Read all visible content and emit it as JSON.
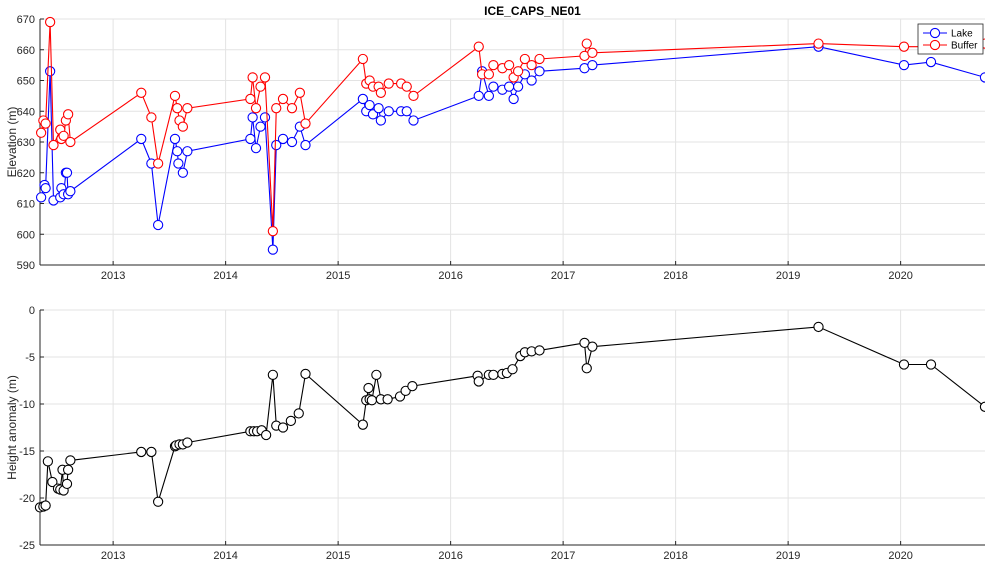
{
  "chart_data": [
    {
      "type": "line",
      "title": "ICE_CAPS_NE01",
      "xlabel": "",
      "ylabel": "Elevation (m)",
      "xlim": [
        2012.35,
        2020.75
      ],
      "ylim": [
        590,
        670
      ],
      "x_ticks": [
        "2013",
        "2014",
        "2015",
        "2016",
        "2017",
        "2018",
        "2019",
        "2020"
      ],
      "y_ticks": [
        "590",
        "600",
        "610",
        "620",
        "630",
        "640",
        "650",
        "660",
        "670"
      ],
      "grid": true,
      "legend_position": "top-right",
      "series": [
        {
          "name": "Lake",
          "color": "#0000ff",
          "points": [
            [
              2012.36,
              612
            ],
            [
              2012.39,
              616
            ],
            [
              2012.4,
              615
            ],
            [
              2012.44,
              653
            ],
            [
              2012.47,
              611
            ],
            [
              2012.53,
              612
            ],
            [
              2012.54,
              615
            ],
            [
              2012.56,
              613
            ],
            [
              2012.58,
              620
            ],
            [
              2012.59,
              620
            ],
            [
              2012.6,
              613
            ],
            [
              2012.62,
              614
            ],
            [
              2013.25,
              631
            ],
            [
              2013.34,
              623
            ],
            [
              2013.4,
              603
            ],
            [
              2013.55,
              631
            ],
            [
              2013.57,
              627
            ],
            [
              2013.58,
              623
            ],
            [
              2013.62,
              620
            ],
            [
              2013.66,
              627
            ],
            [
              2014.22,
              631
            ],
            [
              2014.24,
              638
            ],
            [
              2014.27,
              628
            ],
            [
              2014.31,
              635
            ],
            [
              2014.35,
              638
            ],
            [
              2014.42,
              595
            ],
            [
              2014.45,
              629
            ],
            [
              2014.51,
              631
            ],
            [
              2014.59,
              630
            ],
            [
              2014.66,
              635
            ],
            [
              2014.71,
              629
            ],
            [
              2015.22,
              644
            ],
            [
              2015.25,
              640
            ],
            [
              2015.28,
              642
            ],
            [
              2015.31,
              639
            ],
            [
              2015.36,
              641
            ],
            [
              2015.38,
              637
            ],
            [
              2015.45,
              640
            ],
            [
              2015.56,
              640
            ],
            [
              2015.61,
              640
            ],
            [
              2015.67,
              637
            ],
            [
              2016.25,
              645
            ],
            [
              2016.28,
              653
            ],
            [
              2016.34,
              645
            ],
            [
              2016.38,
              648
            ],
            [
              2016.46,
              647
            ],
            [
              2016.52,
              648
            ],
            [
              2016.56,
              644
            ],
            [
              2016.6,
              648
            ],
            [
              2016.66,
              652
            ],
            [
              2016.72,
              650
            ],
            [
              2016.79,
              653
            ],
            [
              2017.19,
              654
            ],
            [
              2017.26,
              655
            ],
            [
              2019.27,
              661
            ],
            [
              2020.03,
              655
            ],
            [
              2020.27,
              656
            ],
            [
              2020.75,
              651
            ]
          ]
        },
        {
          "name": "Buffer",
          "color": "#ff0000",
          "points": [
            [
              2012.36,
              633
            ],
            [
              2012.38,
              637
            ],
            [
              2012.4,
              636
            ],
            [
              2012.44,
              669
            ],
            [
              2012.47,
              629
            ],
            [
              2012.53,
              634
            ],
            [
              2012.54,
              631
            ],
            [
              2012.56,
              632
            ],
            [
              2012.58,
              637
            ],
            [
              2012.6,
              639
            ],
            [
              2012.62,
              630
            ],
            [
              2013.25,
              646
            ],
            [
              2013.34,
              638
            ],
            [
              2013.4,
              623
            ],
            [
              2013.55,
              645
            ],
            [
              2013.57,
              641
            ],
            [
              2013.59,
              637
            ],
            [
              2013.62,
              635
            ],
            [
              2013.66,
              641
            ],
            [
              2014.22,
              644
            ],
            [
              2014.24,
              651
            ],
            [
              2014.27,
              641
            ],
            [
              2014.31,
              648
            ],
            [
              2014.35,
              651
            ],
            [
              2014.42,
              601
            ],
            [
              2014.45,
              641
            ],
            [
              2014.51,
              644
            ],
            [
              2014.59,
              641
            ],
            [
              2014.66,
              646
            ],
            [
              2014.71,
              636
            ],
            [
              2015.22,
              657
            ],
            [
              2015.25,
              649
            ],
            [
              2015.28,
              650
            ],
            [
              2015.31,
              648
            ],
            [
              2015.36,
              648
            ],
            [
              2015.38,
              646
            ],
            [
              2015.45,
              649
            ],
            [
              2015.56,
              649
            ],
            [
              2015.61,
              648
            ],
            [
              2015.67,
              645
            ],
            [
              2016.25,
              661
            ],
            [
              2016.28,
              652
            ],
            [
              2016.34,
              652
            ],
            [
              2016.38,
              655
            ],
            [
              2016.46,
              654
            ],
            [
              2016.52,
              655
            ],
            [
              2016.56,
              651
            ],
            [
              2016.6,
              653
            ],
            [
              2016.66,
              657
            ],
            [
              2016.72,
              655
            ],
            [
              2016.79,
              657
            ],
            [
              2017.19,
              658
            ],
            [
              2017.21,
              662
            ],
            [
              2017.26,
              659
            ],
            [
              2019.27,
              662
            ],
            [
              2020.03,
              661
            ],
            [
              2020.27,
              661
            ],
            [
              2020.75,
              662
            ]
          ]
        }
      ]
    },
    {
      "type": "line",
      "title": "",
      "xlabel": "",
      "ylabel": "Height anomaly (m)",
      "xlim": [
        2012.35,
        2020.75
      ],
      "ylim": [
        -25,
        0
      ],
      "x_ticks": [
        "2013",
        "2014",
        "2015",
        "2016",
        "2017",
        "2018",
        "2019",
        "2020"
      ],
      "y_ticks": [
        "-25",
        "-20",
        "-15",
        "-10",
        "-5",
        "0"
      ],
      "grid": true,
      "series": [
        {
          "name": "",
          "color": "#000000",
          "points": [
            [
              2012.35,
              -21.0
            ],
            [
              2012.38,
              -20.9
            ],
            [
              2012.4,
              -20.8
            ],
            [
              2012.42,
              -16.1
            ],
            [
              2012.46,
              -18.3
            ],
            [
              2012.51,
              -19.0
            ],
            [
              2012.53,
              -19.1
            ],
            [
              2012.55,
              -17.0
            ],
            [
              2012.56,
              -19.2
            ],
            [
              2012.59,
              -18.5
            ],
            [
              2012.6,
              -17.0
            ],
            [
              2012.62,
              -16.0
            ],
            [
              2013.25,
              -15.1
            ],
            [
              2013.34,
              -15.1
            ],
            [
              2013.4,
              -20.4
            ],
            [
              2013.55,
              -14.5
            ],
            [
              2013.56,
              -14.4
            ],
            [
              2013.59,
              -14.3
            ],
            [
              2013.62,
              -14.3
            ],
            [
              2013.66,
              -14.1
            ],
            [
              2014.22,
              -12.9
            ],
            [
              2014.25,
              -12.9
            ],
            [
              2014.28,
              -12.9
            ],
            [
              2014.32,
              -12.8
            ],
            [
              2014.36,
              -13.3
            ],
            [
              2014.42,
              -6.9
            ],
            [
              2014.45,
              -12.3
            ],
            [
              2014.51,
              -12.5
            ],
            [
              2014.58,
              -11.8
            ],
            [
              2014.65,
              -11.0
            ],
            [
              2014.71,
              -6.8
            ],
            [
              2015.22,
              -12.2
            ],
            [
              2015.25,
              -9.6
            ],
            [
              2015.27,
              -8.3
            ],
            [
              2015.28,
              -9.5
            ],
            [
              2015.3,
              -9.6
            ],
            [
              2015.34,
              -6.9
            ],
            [
              2015.38,
              -9.5
            ],
            [
              2015.44,
              -9.5
            ],
            [
              2015.55,
              -9.2
            ],
            [
              2015.6,
              -8.6
            ],
            [
              2015.66,
              -8.1
            ],
            [
              2016.24,
              -7.0
            ],
            [
              2016.25,
              -7.6
            ],
            [
              2016.34,
              -6.9
            ],
            [
              2016.38,
              -6.9
            ],
            [
              2016.46,
              -6.8
            ],
            [
              2016.5,
              -6.7
            ],
            [
              2016.55,
              -6.3
            ],
            [
              2016.62,
              -4.9
            ],
            [
              2016.66,
              -4.5
            ],
            [
              2016.72,
              -4.4
            ],
            [
              2016.79,
              -4.3
            ],
            [
              2017.19,
              -3.5
            ],
            [
              2017.21,
              -6.2
            ],
            [
              2017.26,
              -3.9
            ],
            [
              2019.27,
              -1.8
            ],
            [
              2020.03,
              -5.8
            ],
            [
              2020.27,
              -5.8
            ],
            [
              2020.75,
              -10.3
            ]
          ]
        }
      ]
    }
  ]
}
